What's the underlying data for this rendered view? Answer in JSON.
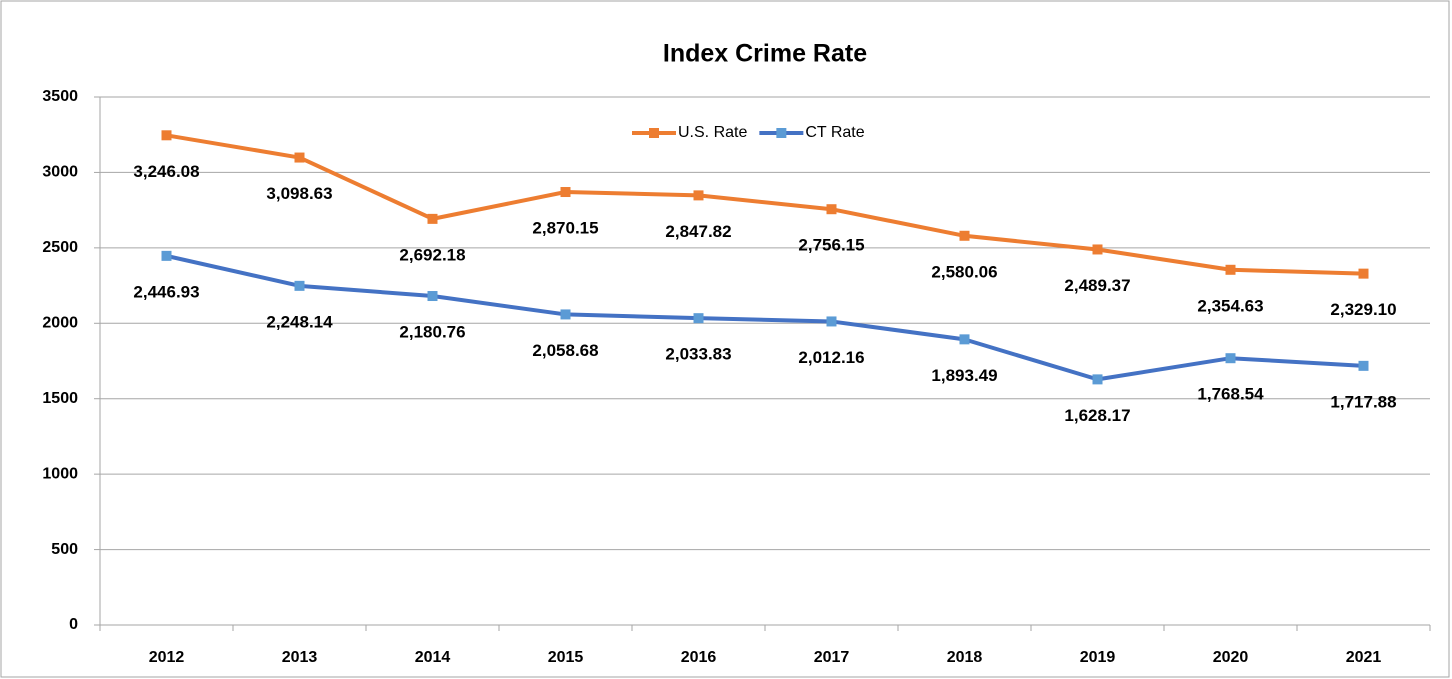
{
  "chart_data": {
    "type": "line",
    "title": "Index Crime Rate",
    "categories": [
      "2012",
      "2013",
      "2014",
      "2015",
      "2016",
      "2017",
      "2018",
      "2019",
      "2020",
      "2021"
    ],
    "series": [
      {
        "name": "U.S. Rate",
        "color": "#ed7d31",
        "values": [
          3246.08,
          3098.63,
          2692.18,
          2870.15,
          2847.82,
          2756.15,
          2580.06,
          2489.37,
          2354.63,
          2329.1
        ],
        "value_labels": [
          "3,246.08",
          "3,098.63",
          "2,692.18",
          "2,870.15",
          "2,847.82",
          "2,756.15",
          "2,580.06",
          "2,489.37",
          "2,354.63",
          "2,329.10"
        ]
      },
      {
        "name": "CT Rate",
        "color": "#4472c4",
        "values": [
          2446.93,
          2248.14,
          2180.76,
          2058.68,
          2033.83,
          2012.16,
          1893.49,
          1628.17,
          1768.54,
          1717.88
        ],
        "value_labels": [
          "2,446.93",
          "2,248.14",
          "2,180.76",
          "2,058.68",
          "2,033.83",
          "2,012.16",
          "1,893.49",
          "1,628.17",
          "1,768.54",
          "1,717.88"
        ]
      }
    ],
    "ylim": [
      0,
      3500
    ],
    "yticks": [
      0,
      500,
      1000,
      1500,
      2000,
      2500,
      3000,
      3500
    ],
    "grid": true,
    "legend": "top"
  }
}
